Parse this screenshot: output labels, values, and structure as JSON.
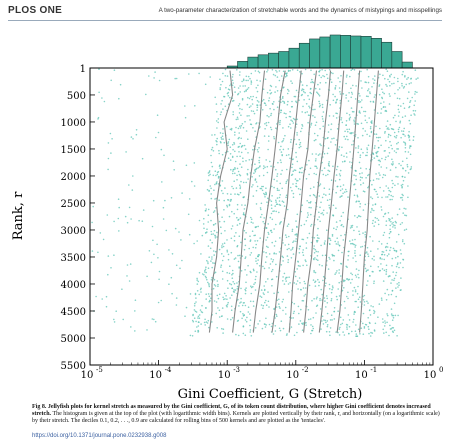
{
  "header": {
    "journal": "PLOS ONE",
    "running_title": "A two-parameter characterization of stretchable words and the dynamics of mistypings and misspellings"
  },
  "caption": {
    "fig_label": "Fig 8.",
    "bold_text": "Jellyfish plots for kernel stretch as measured by the Gini coefficient, G, of its token count distribution, where higher Gini coefficient denotes increased stretch.",
    "body_text": "The histogram is given at the top of the plot (with logarithmic width bins). Kernels are plotted vertically by their rank, r, and horizontally (on a logarithmic scale) by their stretch. The deciles 0.1, 0.2, . . ., 0.9 are calculated for rolling bins of 500 kernels and are plotted as the 'tentacles'."
  },
  "doi": "https://doi.org/10.1371/journal.pone.0232938.g008",
  "colors": {
    "histogram_fill": "#3aa893",
    "scatter_points": "#5ec4b6",
    "decile_lines": "#888888"
  },
  "chart_data": {
    "type": "scatter",
    "xlabel": "Gini Coefficient, G (Stretch)",
    "ylabel": "Rank, r",
    "x_scale": "log",
    "xlim": [
      1e-05,
      1
    ],
    "ylim": [
      5500,
      1
    ],
    "x_ticks": [
      1e-05,
      0.0001,
      0.001,
      0.01,
      0.1,
      1
    ],
    "x_tick_labels": [
      {
        "base": "10",
        "exp": "-5"
      },
      {
        "base": "10",
        "exp": "-4"
      },
      {
        "base": "10",
        "exp": "-3"
      },
      {
        "base": "10",
        "exp": "-2"
      },
      {
        "base": "10",
        "exp": "-1"
      },
      {
        "base": "10",
        "exp": "0"
      }
    ],
    "y_ticks": [
      1,
      500,
      1000,
      1500,
      2000,
      2500,
      3000,
      3500,
      4000,
      4500,
      5000,
      5500
    ],
    "y_tick_labels": [
      "1",
      "500",
      "1000",
      "1500",
      "2000",
      "2500",
      "3000",
      "3500",
      "4000",
      "4500",
      "5000",
      "5500"
    ],
    "histogram": {
      "bin_edges_log10": [
        -3.0,
        -2.85,
        -2.7,
        -2.55,
        -2.4,
        -2.25,
        -2.1,
        -1.95,
        -1.8,
        -1.65,
        -1.5,
        -1.35,
        -1.2,
        -1.05,
        -0.9,
        -0.75,
        -0.6,
        -0.45,
        -0.3
      ],
      "counts": [
        0.06,
        0.2,
        0.33,
        0.4,
        0.45,
        0.5,
        0.6,
        0.75,
        0.88,
        0.94,
        1.0,
        0.99,
        0.97,
        0.96,
        0.9,
        0.78,
        0.5,
        0.18
      ]
    },
    "deciles": [
      {
        "name": "0.1",
        "points": [
          [
            0.0011,
            50
          ],
          [
            0.0012,
            500
          ],
          [
            0.0009,
            1000
          ],
          [
            0.001,
            1500
          ],
          [
            0.0008,
            2000
          ],
          [
            0.0007,
            2500
          ],
          [
            0.00075,
            3000
          ],
          [
            0.0007,
            3500
          ],
          [
            0.0006,
            4000
          ],
          [
            0.0006,
            4500
          ],
          [
            0.00055,
            4900
          ]
        ]
      },
      {
        "name": "0.2",
        "points": [
          [
            0.0035,
            50
          ],
          [
            0.0032,
            500
          ],
          [
            0.003,
            1000
          ],
          [
            0.0025,
            1500
          ],
          [
            0.0022,
            2000
          ],
          [
            0.002,
            2500
          ],
          [
            0.0017,
            3000
          ],
          [
            0.0016,
            3500
          ],
          [
            0.0015,
            4000
          ],
          [
            0.0013,
            4500
          ],
          [
            0.0012,
            4900
          ]
        ]
      },
      {
        "name": "0.3",
        "points": [
          [
            0.007,
            50
          ],
          [
            0.006,
            500
          ],
          [
            0.0055,
            1000
          ],
          [
            0.005,
            1500
          ],
          [
            0.0045,
            2000
          ],
          [
            0.004,
            2500
          ],
          [
            0.0035,
            3000
          ],
          [
            0.0032,
            3500
          ],
          [
            0.003,
            4000
          ],
          [
            0.0026,
            4500
          ],
          [
            0.0024,
            4900
          ]
        ]
      },
      {
        "name": "0.4",
        "points": [
          [
            0.012,
            50
          ],
          [
            0.011,
            500
          ],
          [
            0.01,
            1000
          ],
          [
            0.009,
            1500
          ],
          [
            0.008,
            2000
          ],
          [
            0.0075,
            2500
          ],
          [
            0.0065,
            3000
          ],
          [
            0.006,
            3500
          ],
          [
            0.0055,
            4000
          ],
          [
            0.005,
            4500
          ],
          [
            0.0045,
            4900
          ]
        ]
      },
      {
        "name": "0.5",
        "points": [
          [
            0.02,
            50
          ],
          [
            0.018,
            500
          ],
          [
            0.016,
            1000
          ],
          [
            0.015,
            1500
          ],
          [
            0.013,
            2000
          ],
          [
            0.012,
            2500
          ],
          [
            0.011,
            3000
          ],
          [
            0.01,
            3500
          ],
          [
            0.009,
            4000
          ],
          [
            0.0085,
            4500
          ],
          [
            0.008,
            4900
          ]
        ]
      },
      {
        "name": "0.6",
        "points": [
          [
            0.032,
            50
          ],
          [
            0.03,
            500
          ],
          [
            0.027,
            1000
          ],
          [
            0.025,
            1500
          ],
          [
            0.022,
            2000
          ],
          [
            0.02,
            2500
          ],
          [
            0.018,
            3000
          ],
          [
            0.017,
            3500
          ],
          [
            0.015,
            4000
          ],
          [
            0.014,
            4500
          ],
          [
            0.013,
            4900
          ]
        ]
      },
      {
        "name": "0.7",
        "points": [
          [
            0.05,
            50
          ],
          [
            0.047,
            500
          ],
          [
            0.043,
            1000
          ],
          [
            0.04,
            1500
          ],
          [
            0.036,
            2000
          ],
          [
            0.033,
            2500
          ],
          [
            0.03,
            3000
          ],
          [
            0.028,
            3500
          ],
          [
            0.026,
            4000
          ],
          [
            0.024,
            4500
          ],
          [
            0.022,
            4900
          ]
        ]
      },
      {
        "name": "0.8",
        "points": [
          [
            0.085,
            50
          ],
          [
            0.08,
            500
          ],
          [
            0.075,
            1000
          ],
          [
            0.07,
            1500
          ],
          [
            0.065,
            2000
          ],
          [
            0.06,
            2500
          ],
          [
            0.055,
            3000
          ],
          [
            0.05,
            3500
          ],
          [
            0.047,
            4000
          ],
          [
            0.044,
            4500
          ],
          [
            0.04,
            4900
          ]
        ]
      },
      {
        "name": "0.9",
        "points": [
          [
            0.16,
            50
          ],
          [
            0.15,
            500
          ],
          [
            0.14,
            1000
          ],
          [
            0.13,
            1500
          ],
          [
            0.12,
            2000
          ],
          [
            0.115,
            2500
          ],
          [
            0.11,
            3000
          ],
          [
            0.1,
            3500
          ],
          [
            0.095,
            4000
          ],
          [
            0.09,
            4500
          ],
          [
            0.085,
            4900
          ]
        ]
      }
    ]
  }
}
